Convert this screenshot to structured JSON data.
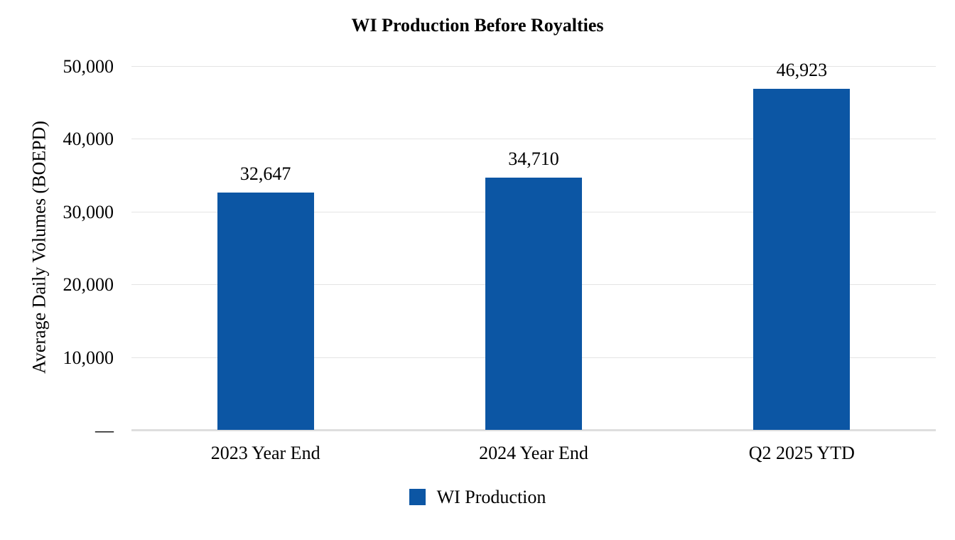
{
  "chart_data": {
    "type": "bar",
    "title": "WI Production Before Royalties",
    "categories": [
      "2023 Year End",
      "2024 Year End",
      "Q2 2025 YTD"
    ],
    "values": [
      32647,
      34710,
      46923
    ],
    "value_labels": [
      "32,647",
      "34,710",
      "46,923"
    ],
    "xlabel": "",
    "ylabel": "Average Daily Volumes (BOEPD)",
    "ylim": [
      0,
      50000
    ],
    "ytick_interval": 10000,
    "ytick_labels": [
      "—",
      "10,000",
      "20,000",
      "30,000",
      "40,000",
      "50,000"
    ],
    "grid": "horizontal",
    "legend_position": "bottom",
    "series": [
      {
        "name": "WI Production",
        "values": [
          32647,
          34710,
          46923
        ],
        "color": "#0c56a4"
      }
    ],
    "colors": {
      "bar": "#0c56a4",
      "gridline": "#e4e4e4",
      "text": "#000000",
      "background": "#ffffff"
    }
  }
}
